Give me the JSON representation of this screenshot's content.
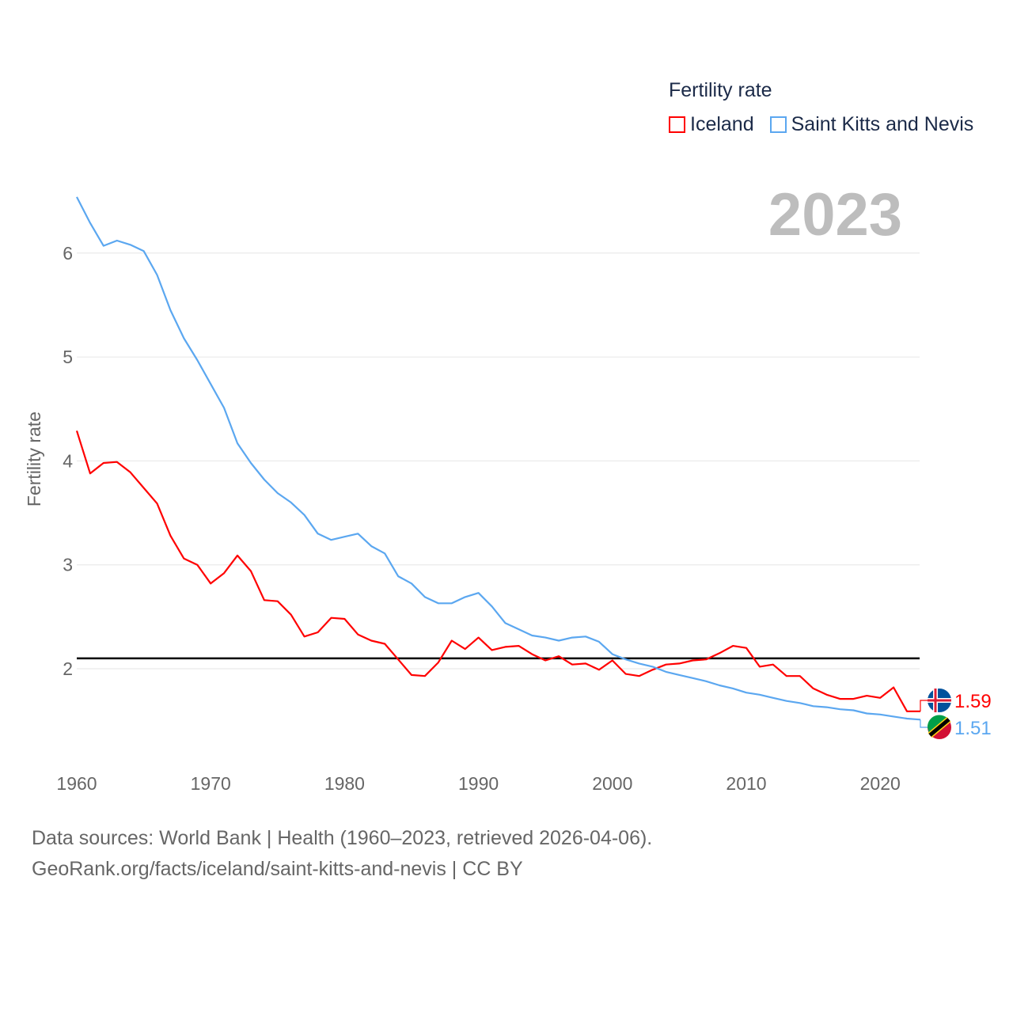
{
  "chart_data": {
    "type": "line",
    "legend_title": "Fertility rate",
    "ylabel": "Fertility rate",
    "year_label": "2023",
    "xlim": [
      1960,
      2023
    ],
    "ylim": [
      1.2,
      6.6
    ],
    "x_ticks": [
      "1960",
      "1970",
      "1980",
      "1990",
      "2000",
      "2010",
      "2020"
    ],
    "y_ticks": [
      "2",
      "3",
      "4",
      "5",
      "6"
    ],
    "reference_line": 2.1,
    "grid": true,
    "legend_position": "top-right",
    "series": [
      {
        "name": "Iceland",
        "color": "#ff0000",
        "end_label": "1.59",
        "values": [
          4.29,
          3.88,
          3.98,
          3.99,
          3.89,
          3.74,
          3.59,
          3.28,
          3.06,
          3.0,
          2.82,
          2.92,
          3.09,
          2.94,
          2.66,
          2.65,
          2.52,
          2.31,
          2.35,
          2.49,
          2.48,
          2.33,
          2.27,
          2.24,
          2.09,
          1.94,
          1.93,
          2.06,
          2.27,
          2.19,
          2.3,
          2.18,
          2.21,
          2.22,
          2.14,
          2.08,
          2.12,
          2.04,
          2.05,
          1.99,
          2.08,
          1.95,
          1.93,
          1.99,
          2.04,
          2.05,
          2.08,
          2.09,
          2.15,
          2.22,
          2.2,
          2.02,
          2.04,
          1.93,
          1.93,
          1.81,
          1.75,
          1.71,
          1.71,
          1.74,
          1.72,
          1.82,
          1.59,
          1.59
        ]
      },
      {
        "name": "Saint Kitts and Nevis",
        "color": "#5ba7f0",
        "end_label": "1.51",
        "values": [
          6.54,
          6.29,
          6.07,
          6.12,
          6.08,
          6.02,
          5.79,
          5.45,
          5.18,
          4.97,
          4.74,
          4.51,
          4.17,
          3.98,
          3.82,
          3.69,
          3.6,
          3.48,
          3.3,
          3.24,
          3.27,
          3.3,
          3.18,
          3.11,
          2.89,
          2.82,
          2.69,
          2.63,
          2.63,
          2.69,
          2.73,
          2.6,
          2.44,
          2.38,
          2.32,
          2.3,
          2.27,
          2.3,
          2.31,
          2.26,
          2.14,
          2.09,
          2.05,
          2.02,
          1.97,
          1.94,
          1.91,
          1.88,
          1.84,
          1.81,
          1.77,
          1.75,
          1.72,
          1.69,
          1.67,
          1.64,
          1.63,
          1.61,
          1.6,
          1.57,
          1.56,
          1.54,
          1.52,
          1.51
        ]
      }
    ]
  },
  "footer": {
    "line1": "Data sources: World Bank | Health (1960–2023, retrieved 2026-04-06).",
    "line2": "GeoRank.org/facts/iceland/saint-kitts-and-nevis | CC BY"
  }
}
